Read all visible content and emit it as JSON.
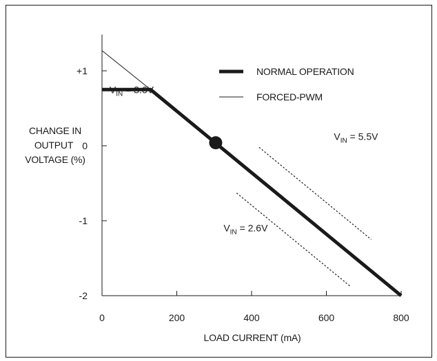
{
  "chart_data": {
    "type": "line",
    "title": "",
    "xlabel": "LOAD CURRENT (mA)",
    "ylabel_lines": [
      "CHANGE IN",
      "OUTPUT",
      "VOLTAGE (%)"
    ],
    "xlim": [
      0,
      800
    ],
    "ylim": [
      -2,
      1.3
    ],
    "x_ticks": [
      0,
      200,
      400,
      600,
      800
    ],
    "x_tick_labels": [
      "0",
      "200",
      "400",
      "600",
      "800"
    ],
    "y_ticks": [
      1,
      0,
      -1,
      -2
    ],
    "y_tick_labels": [
      "+1",
      "0",
      "-1",
      "-2"
    ],
    "grid": false,
    "legend_position": "top-center",
    "legend": [
      {
        "label": "NORMAL OPERATION",
        "style": "thick"
      },
      {
        "label": "FORCED-PWM",
        "style": "thin"
      }
    ],
    "series": [
      {
        "name": "NORMAL OPERATION",
        "style": "thick",
        "x": [
          0,
          130,
          800
        ],
        "y": [
          0.75,
          0.75,
          -2.0
        ]
      },
      {
        "name": "FORCED-PWM",
        "style": "thin",
        "x": [
          0,
          130
        ],
        "y": [
          1.27,
          0.75
        ]
      },
      {
        "style": "dotted",
        "x": [
          420,
          720
        ],
        "y": [
          -0.02,
          -1.25
        ]
      },
      {
        "style": "dotted",
        "x": [
          360,
          665
        ],
        "y": [
          -0.63,
          -1.88
        ]
      }
    ],
    "marker": {
      "x": 304,
      "y": 0.04
    },
    "annotations": [
      {
        "base": "V",
        "sub": "IN",
        "rest": " = 3.6V",
        "x": 20,
        "y": 0.7
      },
      {
        "base": "V",
        "sub": "IN",
        "rest": " = 5.5V",
        "x": 620,
        "y": 0.08
      },
      {
        "base": "V",
        "sub": "IN",
        "rest": " = 2.6V",
        "x": 325,
        "y": -1.14
      }
    ]
  }
}
